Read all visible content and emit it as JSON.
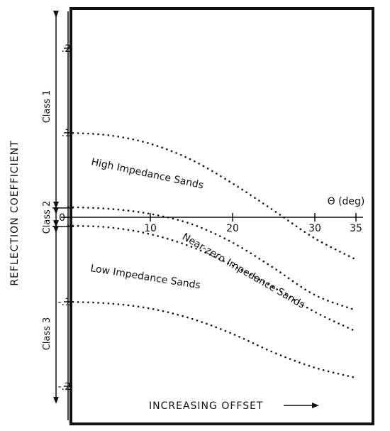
{
  "chart_data": {
    "type": "line",
    "title": "",
    "ylabel": "REFLECTION COEFFICIENT",
    "xlabel": "INCREASING OFFSET",
    "x_axis_label": "Θ (deg)",
    "xlim": [
      0,
      37
    ],
    "ylim": [
      -0.22,
      0.25
    ],
    "x_ticks": [
      10,
      20,
      30,
      35
    ],
    "x_tick_labels": [
      "10",
      "20",
      "30",
      "35"
    ],
    "y_ticks": [
      0.2,
      0.1,
      0,
      -0.1,
      -0.2
    ],
    "y_tick_labels": [
      ".2",
      ".1",
      "0",
      "-.1",
      "-.2"
    ],
    "grid": false,
    "series": [
      {
        "name": "High Impedance Sands",
        "style": "dotted",
        "x": [
          0,
          5,
          10,
          15,
          20,
          25,
          30,
          35
        ],
        "y": [
          0.1,
          0.097,
          0.087,
          0.068,
          0.04,
          0.008,
          -0.025,
          -0.05
        ]
      },
      {
        "name": "",
        "style": "dotted",
        "x": [
          0,
          5,
          10,
          15,
          20,
          25,
          30,
          35
        ],
        "y": [
          0.012,
          0.01,
          0.004,
          -0.008,
          -0.03,
          -0.06,
          -0.092,
          -0.11
        ]
      },
      {
        "name": "Near-zero Impedance Sands",
        "style": "dotted",
        "x": [
          0,
          5,
          10,
          15,
          20,
          25,
          30,
          35
        ],
        "y": [
          -0.01,
          -0.012,
          -0.02,
          -0.035,
          -0.057,
          -0.083,
          -0.112,
          -0.135
        ]
      },
      {
        "name": "Low Impedance Sands",
        "style": "dotted",
        "x": [
          0,
          5,
          10,
          15,
          20,
          25,
          30,
          35
        ],
        "y": [
          -0.1,
          -0.102,
          -0.108,
          -0.12,
          -0.138,
          -0.16,
          -0.178,
          -0.19
        ]
      }
    ],
    "class_labels": [
      {
        "text": "Class 1",
        "y_range": [
          0.011,
          0.25
        ]
      },
      {
        "text": "Class 2",
        "y_range": [
          -0.011,
          0.011
        ]
      },
      {
        "text": "Class 3",
        "y_range": [
          -0.22,
          -0.011
        ]
      }
    ],
    "annotations": [
      "High Impedance Sands",
      "Near-zero Impedance Sands",
      "Low Impedance Sands"
    ]
  }
}
